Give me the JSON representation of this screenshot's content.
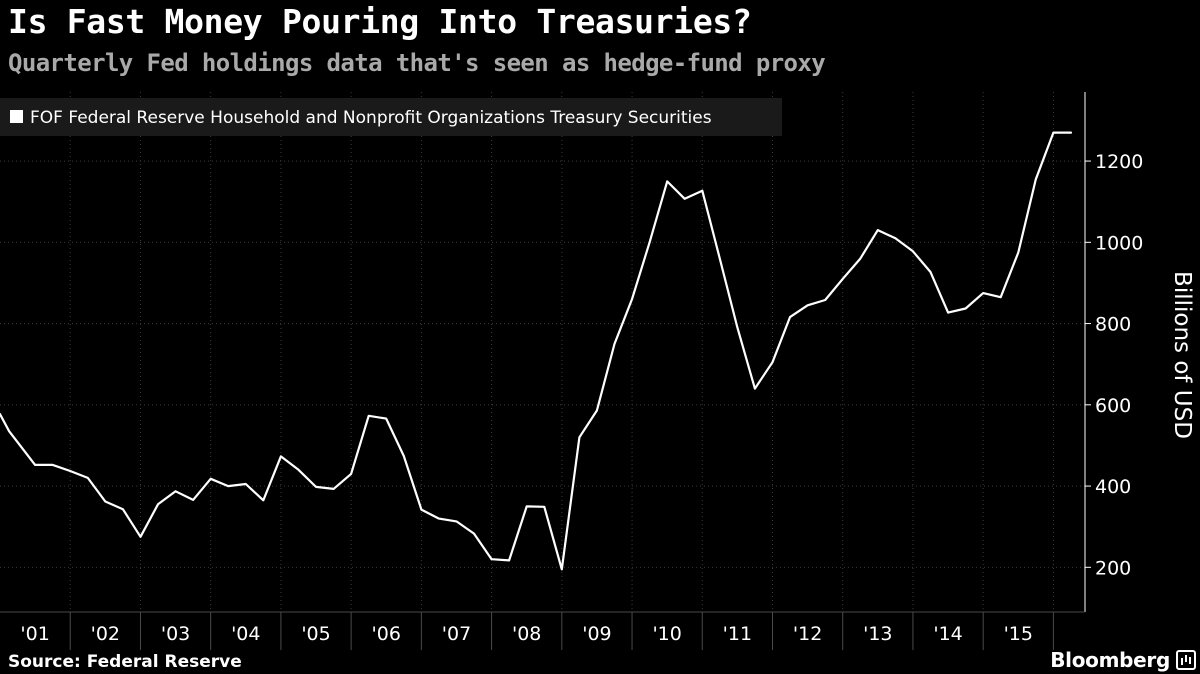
{
  "title": "Is Fast Money Pouring Into Treasuries?",
  "subtitle": "Quarterly Fed holdings data that's seen as hedge-fund proxy",
  "source": "Source: Federal Reserve",
  "brand": "Bloomberg",
  "colors": {
    "background": "#000000",
    "line": "#ffffff",
    "grid": "#3a3a3a",
    "subtitle": "#a9a9a9",
    "legend_bg": "#1a1a1a"
  },
  "chart_data": {
    "type": "line",
    "title": "Is Fast Money Pouring Into Treasuries?",
    "subtitle": "Quarterly Fed holdings data that's seen as hedge-fund proxy",
    "ylabel": "Billions of USD",
    "xlabel": "",
    "ylim": [
      90,
      1370
    ],
    "xlim": [
      2001.0,
      2016.45
    ],
    "yticks": [
      200,
      400,
      600,
      800,
      1000,
      1200
    ],
    "ytick_labels": [
      "200",
      "400",
      "600",
      "800",
      "1000",
      "1200"
    ],
    "xtick_labels": [
      "'01",
      "'02",
      "'03",
      "'04",
      "'05",
      "'06",
      "'07",
      "'08",
      "'09",
      "'10",
      "'11",
      "'12",
      "'13",
      "'14",
      "'15"
    ],
    "xtick_years": [
      2001,
      2002,
      2003,
      2004,
      2005,
      2006,
      2007,
      2008,
      2009,
      2010,
      2011,
      2012,
      2013,
      2014,
      2015
    ],
    "grid": true,
    "legend_position": "top-left",
    "series": [
      {
        "name": "FOF Federal Reserve Household and Nonprofit Organizations Treasury Securities",
        "x": [
          2001.0,
          2001.13,
          2001.5,
          2001.75,
          2002.0,
          2002.25,
          2002.5,
          2002.75,
          2003.0,
          2003.25,
          2003.5,
          2003.75,
          2004.0,
          2004.25,
          2004.5,
          2004.75,
          2005.0,
          2005.25,
          2005.5,
          2005.75,
          2006.0,
          2006.25,
          2006.5,
          2006.75,
          2007.0,
          2007.25,
          2007.5,
          2007.75,
          2008.0,
          2008.25,
          2008.5,
          2008.75,
          2009.0,
          2009.25,
          2009.5,
          2009.75,
          2010.0,
          2010.25,
          2010.5,
          2010.75,
          2011.0,
          2011.25,
          2011.5,
          2011.75,
          2012.0,
          2012.25,
          2012.5,
          2012.75,
          2013.0,
          2013.25,
          2013.5,
          2013.75,
          2014.0,
          2014.25,
          2014.5,
          2014.75,
          2015.0,
          2015.25,
          2015.5,
          2015.75,
          2016.0,
          2016.25
        ],
        "values": [
          577,
          535,
          452,
          452,
          437,
          420,
          362,
          343,
          275,
          355,
          387,
          366,
          418,
          400,
          405,
          365,
          473,
          440,
          398,
          393,
          430,
          573,
          566,
          474,
          342,
          320,
          313,
          283,
          220,
          217,
          350,
          349,
          195,
          520,
          586,
          750,
          860,
          1000,
          1150,
          1107,
          1127,
          960,
          790,
          640,
          705,
          816,
          845,
          858,
          910,
          960,
          1030,
          1010,
          978,
          927,
          827,
          837,
          875,
          865,
          975,
          1155,
          1270,
          1270
        ]
      }
    ]
  }
}
